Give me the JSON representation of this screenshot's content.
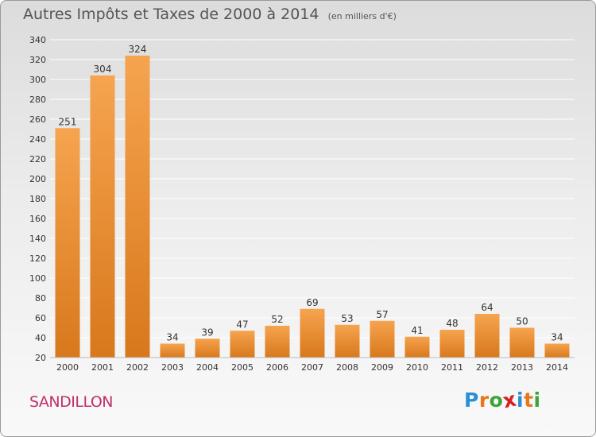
{
  "title": "Autres Impôts et Taxes de 2000 à 2014",
  "unit_label": "(en milliers d'€)",
  "commune": "SANDILLON",
  "logo": {
    "text": "Proxiti",
    "letter_colors": [
      "#2a8fd6",
      "#e8761c",
      "#3da33a",
      "#d62020",
      "#2a8fd6",
      "#e8761c",
      "#3da33a"
    ]
  },
  "colors": {
    "bar_light": "#f6a44f",
    "bar_dark": "#d8781c",
    "grid": "#ffffff",
    "axis_text": "#333333",
    "commune": "#c0306a"
  },
  "chart_data": {
    "type": "bar",
    "categories": [
      "2000",
      "2001",
      "2002",
      "2003",
      "2004",
      "2005",
      "2006",
      "2007",
      "2008",
      "2009",
      "2010",
      "2011",
      "2012",
      "2013",
      "2014"
    ],
    "values": [
      251,
      304,
      324,
      34,
      39,
      47,
      52,
      69,
      53,
      57,
      41,
      48,
      64,
      50,
      34
    ],
    "ylim": [
      20,
      340
    ],
    "yticks": [
      20,
      40,
      60,
      80,
      100,
      120,
      140,
      160,
      180,
      200,
      220,
      240,
      260,
      280,
      300,
      320,
      340
    ],
    "grid": true
  }
}
